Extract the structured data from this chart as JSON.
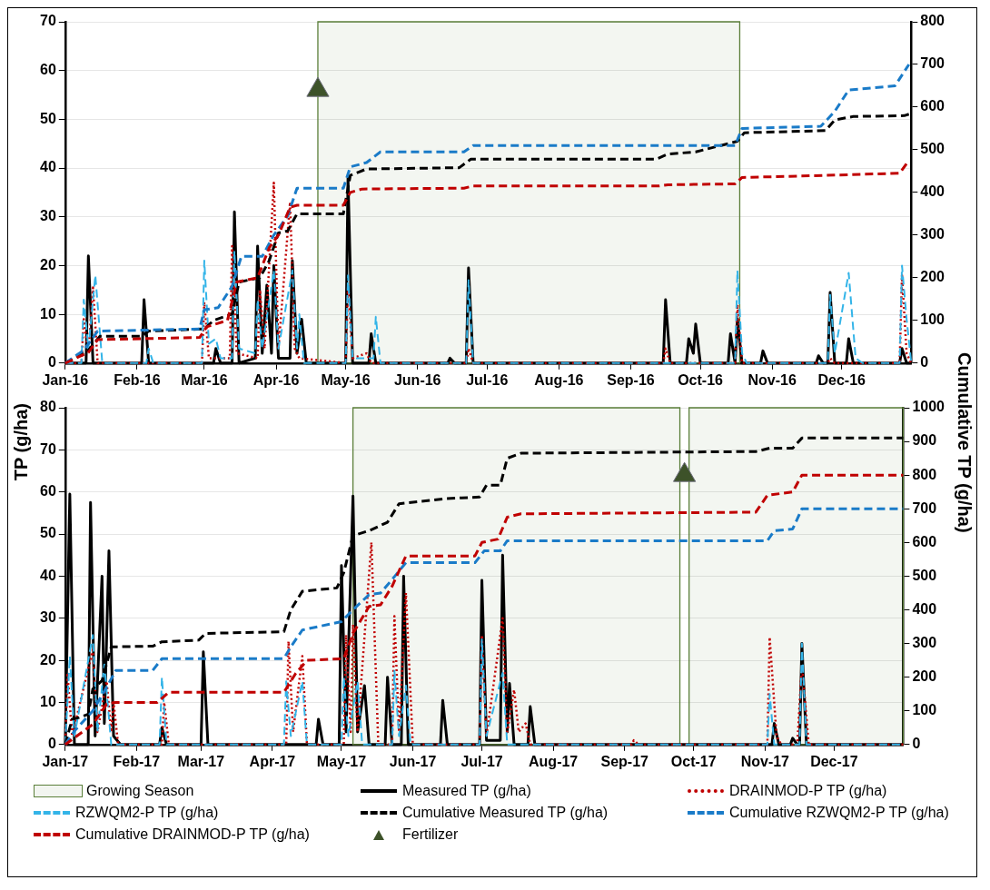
{
  "chart_data": [
    {
      "type": "line",
      "ylabel": "TP (g/ha)",
      "y2label": "Cumulative TP (g/ha)",
      "xlim": [
        "2016-01-01",
        "2016-12-31"
      ],
      "xticks": [
        {
          "value": "2016-01-01",
          "label": "Jan-16"
        },
        {
          "value": "2016-02-01",
          "label": "Feb-16"
        },
        {
          "value": "2016-03-01",
          "label": "Mar-16"
        },
        {
          "value": "2016-04-01",
          "label": "Apr-16"
        },
        {
          "value": "2016-05-01",
          "label": "May-16"
        },
        {
          "value": "2016-06-01",
          "label": "Jun-16"
        },
        {
          "value": "2016-07-01",
          "label": "Jul-16"
        },
        {
          "value": "2016-08-01",
          "label": "Aug-16"
        },
        {
          "value": "2016-09-01",
          "label": "Sep-16"
        },
        {
          "value": "2016-10-01",
          "label": "Oct-16"
        },
        {
          "value": "2016-11-01",
          "label": "Nov-16"
        },
        {
          "value": "2016-12-01",
          "label": "Dec-16"
        }
      ],
      "ylim": [
        0,
        70
      ],
      "yticks": [
        0,
        10,
        20,
        30,
        40,
        50,
        60,
        70
      ],
      "y2lim": [
        0,
        800
      ],
      "y2ticks": [
        0,
        100,
        200,
        300,
        400,
        500,
        600,
        700,
        800
      ],
      "grid": "y",
      "legend": false,
      "bands": [
        {
          "axis": "x",
          "from": "2016-04-19",
          "to": "2016-10-18",
          "color": "#5b7f3a"
        }
      ],
      "series": [
        {
          "color": "#000000",
          "line_style": "solid",
          "x": [
            "2016-01-01",
            "2016-01-10",
            "2016-01-11",
            "2016-01-13",
            "2016-02-03",
            "2016-02-04",
            "2016-02-06",
            "2016-03-05",
            "2016-03-06",
            "2016-03-08",
            "2016-03-13",
            "2016-03-14",
            "2016-03-16",
            "2016-03-23",
            "2016-03-24",
            "2016-03-26",
            "2016-03-28",
            "2016-03-30",
            "2016-03-31",
            "2016-04-02",
            "2016-04-07",
            "2016-04-08",
            "2016-04-10",
            "2016-04-12",
            "2016-04-14",
            "2016-05-01",
            "2016-05-02",
            "2016-05-04",
            "2016-05-11",
            "2016-05-12",
            "2016-05-14",
            "2016-06-14",
            "2016-06-15",
            "2016-06-17",
            "2016-06-22",
            "2016-06-23",
            "2016-06-25",
            "2016-09-15",
            "2016-09-16",
            "2016-09-18",
            "2016-09-25",
            "2016-09-26",
            "2016-09-28",
            "2016-09-29",
            "2016-10-01",
            "2016-10-13",
            "2016-10-14",
            "2016-10-16",
            "2016-10-17",
            "2016-10-19",
            "2016-10-27",
            "2016-10-28",
            "2016-10-30",
            "2016-11-20",
            "2016-11-21",
            "2016-11-23",
            "2016-11-25",
            "2016-11-26",
            "2016-11-28",
            "2016-12-03",
            "2016-12-04",
            "2016-12-06",
            "2016-12-26",
            "2016-12-27",
            "2016-12-29",
            "2016-12-31"
          ],
          "values": [
            0,
            0,
            22,
            0,
            0,
            13,
            0,
            0,
            3,
            0,
            0,
            31,
            0,
            1,
            24,
            2,
            16,
            2,
            20,
            1,
            1,
            21,
            2,
            9,
            0,
            0,
            38,
            0,
            0,
            6,
            0,
            0,
            1,
            0,
            0,
            19.5,
            0,
            0,
            13,
            0,
            0,
            5,
            2,
            8,
            0,
            0,
            6,
            0,
            9,
            0,
            0,
            2.5,
            0,
            0,
            1.5,
            0,
            0,
            14.5,
            0,
            0,
            5,
            0,
            0,
            3,
            0,
            0
          ]
        },
        {
          "color": "#c00000",
          "line_style": "dotted",
          "x": [
            "2016-01-01",
            "2016-01-08",
            "2016-01-09",
            "2016-01-11",
            "2016-01-13",
            "2016-01-15",
            "2016-02-29",
            "2016-03-01",
            "2016-03-03",
            "2016-03-12",
            "2016-03-13",
            "2016-03-15",
            "2016-03-24",
            "2016-03-25",
            "2016-03-27",
            "2016-03-31",
            "2016-04-02",
            "2016-04-07",
            "2016-04-09",
            "2016-04-11",
            "2016-05-01",
            "2016-05-02",
            "2016-05-04",
            "2016-05-10",
            "2016-05-12",
            "2016-06-22",
            "2016-06-23",
            "2016-06-25",
            "2016-09-15",
            "2016-09-16",
            "2016-09-18",
            "2016-10-16",
            "2016-10-17",
            "2016-10-19",
            "2016-11-25",
            "2016-11-26",
            "2016-11-28",
            "2016-12-26",
            "2016-12-27",
            "2016-12-29",
            "2016-12-31"
          ],
          "values": [
            0,
            0,
            9,
            2,
            15.5,
            0,
            0,
            12.5,
            1,
            1,
            24,
            2,
            1,
            15,
            3,
            37,
            3,
            33,
            3,
            1,
            0,
            16,
            1,
            2,
            0,
            0,
            3,
            0,
            0,
            3,
            0,
            0,
            12,
            0,
            0,
            1,
            0,
            0,
            18,
            2,
            0
          ]
        },
        {
          "color": "#33b4e8",
          "line_style": "dashed",
          "x": [
            "2016-01-01",
            "2016-01-08",
            "2016-01-09",
            "2016-01-11",
            "2016-01-14",
            "2016-01-17",
            "2016-02-05",
            "2016-02-06",
            "2016-02-08",
            "2016-02-29",
            "2016-03-01",
            "2016-03-03",
            "2016-03-06",
            "2016-03-08",
            "2016-03-13",
            "2016-03-14",
            "2016-03-16",
            "2016-03-23",
            "2016-03-24",
            "2016-03-26",
            "2016-03-31",
            "2016-04-02",
            "2016-04-08",
            "2016-04-10",
            "2016-04-11",
            "2016-04-13",
            "2016-05-01",
            "2016-05-02",
            "2016-05-04",
            "2016-05-13",
            "2016-05-14",
            "2016-05-16",
            "2016-06-22",
            "2016-06-23",
            "2016-06-25",
            "2016-10-16",
            "2016-10-17",
            "2016-10-19",
            "2016-10-21",
            "2016-11-25",
            "2016-11-26",
            "2016-11-28",
            "2016-12-04",
            "2016-12-07",
            "2016-12-10",
            "2016-12-26",
            "2016-12-27",
            "2016-12-29",
            "2016-12-31"
          ],
          "values": [
            0,
            0,
            13,
            3,
            18,
            0,
            0,
            3,
            0,
            0,
            21,
            4,
            5,
            1,
            1,
            23,
            3,
            2,
            13,
            3,
            19,
            3,
            19,
            3,
            10,
            0,
            0,
            18,
            1,
            1,
            9.5,
            0,
            0,
            17,
            0,
            0,
            19,
            2,
            0,
            0,
            14,
            2,
            18.5,
            1,
            0,
            0,
            20,
            9,
            0
          ]
        },
        {
          "color": "#000000",
          "line_style": "dashed",
          "axis": "y2",
          "x": [
            "2016-01-01",
            "2016-01-11",
            "2016-01-16",
            "2016-02-03",
            "2016-02-06",
            "2016-03-01",
            "2016-03-05",
            "2016-03-13",
            "2016-03-16",
            "2016-03-25",
            "2016-03-29",
            "2016-04-02",
            "2016-04-06",
            "2016-04-10",
            "2016-04-30",
            "2016-05-03",
            "2016-05-10",
            "2016-06-19",
            "2016-06-24",
            "2016-09-12",
            "2016-09-17",
            "2016-09-29",
            "2016-10-17",
            "2016-10-20",
            "2016-11-24",
            "2016-11-28",
            "2016-12-06",
            "2016-12-28",
            "2016-12-31"
          ],
          "values": [
            0,
            30,
            63,
            63,
            75,
            80,
            100,
            115,
            190,
            200,
            240,
            305,
            310,
            350,
            350,
            440,
            455,
            458,
            478,
            478,
            490,
            495,
            520,
            540,
            545,
            570,
            578,
            580,
            585
          ]
        },
        {
          "color": "#1a7bc8",
          "line_style": "dashed",
          "axis": "y2",
          "x": [
            "2016-01-01",
            "2016-01-09",
            "2016-01-15",
            "2016-02-28",
            "2016-03-01",
            "2016-03-07",
            "2016-03-13",
            "2016-03-17",
            "2016-03-26",
            "2016-03-31",
            "2016-04-06",
            "2016-04-10",
            "2016-04-30",
            "2016-05-03",
            "2016-05-10",
            "2016-05-16",
            "2016-06-21",
            "2016-06-25",
            "2016-10-16",
            "2016-10-19",
            "2016-11-22",
            "2016-11-28",
            "2016-12-04",
            "2016-12-24",
            "2016-12-30"
          ],
          "values": [
            0,
            30,
            75,
            80,
            125,
            130,
            180,
            250,
            250,
            300,
            345,
            410,
            410,
            460,
            470,
            495,
            495,
            510,
            510,
            550,
            555,
            590,
            640,
            650,
            700
          ]
        },
        {
          "color": "#c00000",
          "line_style": "dashed",
          "axis": "y2",
          "x": [
            "2016-01-01",
            "2016-01-11",
            "2016-01-15",
            "2016-02-28",
            "2016-03-02",
            "2016-03-11",
            "2016-03-15",
            "2016-03-24",
            "2016-03-29",
            "2016-04-02",
            "2016-04-07",
            "2016-04-10",
            "2016-04-30",
            "2016-05-03",
            "2016-05-08",
            "2016-06-21",
            "2016-06-25",
            "2016-09-13",
            "2016-09-17",
            "2016-10-16",
            "2016-10-19",
            "2016-11-24",
            "2016-12-26",
            "2016-12-30"
          ],
          "values": [
            0,
            25,
            55,
            60,
            85,
            100,
            190,
            200,
            270,
            300,
            365,
            370,
            370,
            400,
            408,
            410,
            415,
            415,
            418,
            420,
            435,
            440,
            445,
            475
          ]
        },
        {
          "type": "scatter",
          "marker": "triangle",
          "color": "#3d5229",
          "x": [
            "2016-04-19"
          ],
          "values": [
            56
          ]
        }
      ]
    },
    {
      "type": "line",
      "xlim": [
        "2017-01-01",
        "2017-12-31"
      ],
      "xticks": [
        {
          "value": "2017-01-01",
          "label": "Jan-17"
        },
        {
          "value": "2017-02-01",
          "label": "Feb-17"
        },
        {
          "value": "2017-03-01",
          "label": "Mar-17"
        },
        {
          "value": "2017-04-01",
          "label": "Apr-17"
        },
        {
          "value": "2017-05-01",
          "label": "May-17"
        },
        {
          "value": "2017-06-01",
          "label": "Jun-17"
        },
        {
          "value": "2017-07-01",
          "label": "Jul-17"
        },
        {
          "value": "2017-08-01",
          "label": "Aug-17"
        },
        {
          "value": "2017-09-01",
          "label": "Sep-17"
        },
        {
          "value": "2017-10-01",
          "label": "Oct-17"
        },
        {
          "value": "2017-11-01",
          "label": "Nov-17"
        },
        {
          "value": "2017-12-01",
          "label": "Dec-17"
        }
      ],
      "ylim": [
        0,
        80
      ],
      "yticks": [
        0,
        10,
        20,
        30,
        40,
        50,
        60,
        70,
        80
      ],
      "y2lim": [
        0,
        1000
      ],
      "y2ticks": [
        0,
        100,
        200,
        300,
        400,
        500,
        600,
        700,
        800,
        900,
        1000
      ],
      "grid": "y",
      "legend": "bottom",
      "bands": [
        {
          "axis": "x",
          "from": "2017-05-06",
          "to": "2017-09-25",
          "color": "#5b7f3a",
          "label": "Growing Season"
        },
        {
          "axis": "x",
          "from": "2017-09-29",
          "to": "2017-12-31",
          "color": "#5b7f3a"
        }
      ],
      "series": [
        {
          "name": "Measured TP (g/ha)",
          "color": "#000000",
          "line_style": "solid",
          "x": [
            "2017-01-01",
            "2017-01-03",
            "2017-01-05",
            "2017-01-11",
            "2017-01-12",
            "2017-01-14",
            "2017-01-17",
            "2017-01-18",
            "2017-01-20",
            "2017-01-22",
            "2017-01-25",
            "2017-02-11",
            "2017-02-12",
            "2017-02-14",
            "2017-03-01",
            "2017-03-02",
            "2017-03-04",
            "2017-04-20",
            "2017-04-21",
            "2017-04-23",
            "2017-04-30",
            "2017-05-01",
            "2017-05-03",
            "2017-05-06",
            "2017-05-08",
            "2017-05-11",
            "2017-05-13",
            "2017-05-20",
            "2017-05-21",
            "2017-05-23",
            "2017-05-27",
            "2017-05-28",
            "2017-05-30",
            "2017-06-13",
            "2017-06-14",
            "2017-06-16",
            "2017-06-30",
            "2017-07-01",
            "2017-07-03",
            "2017-07-09",
            "2017-07-10",
            "2017-07-12",
            "2017-07-13",
            "2017-07-15",
            "2017-07-21",
            "2017-07-22",
            "2017-07-24",
            "2017-11-04",
            "2017-11-05",
            "2017-11-07",
            "2017-11-12",
            "2017-11-13",
            "2017-11-15",
            "2017-11-16",
            "2017-11-17",
            "2017-11-19",
            "2017-12-31"
          ],
          "values": [
            0,
            59.5,
            0,
            0,
            57.5,
            2,
            40,
            5,
            46,
            2,
            0,
            0,
            4,
            0,
            0,
            22,
            0,
            0,
            6,
            0,
            0,
            42.5,
            3,
            59,
            3,
            14,
            0,
            0,
            16,
            0,
            0,
            40,
            0,
            0,
            10.5,
            0,
            0,
            39,
            1,
            1,
            45,
            3,
            14.5,
            0,
            0,
            9,
            0,
            0,
            5,
            0,
            0,
            1.5,
            0,
            0,
            24,
            0,
            0
          ]
        },
        {
          "name": "DRAINMOD-P TP (g/ha)",
          "color": "#c00000",
          "line_style": "dotted",
          "x": [
            "2017-01-01",
            "2017-01-02",
            "2017-01-04",
            "2017-01-13",
            "2017-01-15",
            "2017-01-19",
            "2017-01-21",
            "2017-01-22",
            "2017-01-24",
            "2017-02-12",
            "2017-02-13",
            "2017-02-15",
            "2017-04-07",
            "2017-04-08",
            "2017-04-10",
            "2017-04-14",
            "2017-04-16",
            "2017-05-02",
            "2017-05-03",
            "2017-05-05",
            "2017-05-06",
            "2017-05-08",
            "2017-05-14",
            "2017-05-17",
            "2017-05-23",
            "2017-05-24",
            "2017-05-26",
            "2017-05-29",
            "2017-06-01",
            "2017-06-30",
            "2017-07-01",
            "2017-07-03",
            "2017-07-10",
            "2017-07-12",
            "2017-07-15",
            "2017-07-17",
            "2017-07-20",
            "2017-07-22",
            "2017-09-04",
            "2017-09-05",
            "2017-09-07",
            "2017-11-02",
            "2017-11-03",
            "2017-11-06",
            "2017-11-08",
            "2017-11-15",
            "2017-11-17",
            "2017-11-20",
            "2017-12-31"
          ],
          "values": [
            0,
            17,
            2,
            22.5,
            3,
            15,
            3,
            10,
            0,
            0,
            10,
            0,
            0,
            24.5,
            3,
            21,
            0,
            0,
            26,
            3,
            28.5,
            3,
            48,
            0,
            0,
            30.5,
            3,
            36,
            0,
            0,
            26,
            2,
            30,
            3,
            13,
            3,
            5,
            0,
            0,
            1,
            0,
            0,
            25.5,
            2,
            0,
            0,
            19,
            0,
            0
          ]
        },
        {
          "name": "RZWQM2-P TP (g/ha)",
          "color": "#33b4e8",
          "line_style": "dashed",
          "x": [
            "2017-01-01",
            "2017-01-03",
            "2017-01-05",
            "2017-01-13",
            "2017-01-15",
            "2017-01-18",
            "2017-01-21",
            "2017-02-11",
            "2017-02-12",
            "2017-02-14",
            "2017-04-06",
            "2017-04-07",
            "2017-04-09",
            "2017-04-14",
            "2017-04-16",
            "2017-05-01",
            "2017-05-02",
            "2017-05-04",
            "2017-05-08",
            "2017-05-10",
            "2017-05-23",
            "2017-05-24",
            "2017-05-26",
            "2017-05-29",
            "2017-05-31",
            "2017-06-30",
            "2017-07-01",
            "2017-07-03",
            "2017-07-10",
            "2017-07-12",
            "2017-11-02",
            "2017-11-03",
            "2017-11-05",
            "2017-11-16",
            "2017-11-17",
            "2017-11-19",
            "2017-12-31"
          ],
          "values": [
            0,
            21,
            2,
            26,
            3,
            19,
            0,
            0,
            16,
            0,
            0,
            15,
            2,
            15,
            0,
            0,
            16,
            2,
            15,
            0,
            0,
            17.5,
            2,
            14,
            0,
            0,
            25,
            2,
            17,
            0,
            0,
            12,
            0,
            0,
            24,
            0,
            0
          ]
        },
        {
          "name": "Cumulative Measured TP (g/ha)",
          "color": "#000000",
          "line_style": "dashed",
          "axis": "y2",
          "x": [
            "2017-01-01",
            "2017-01-04",
            "2017-01-07",
            "2017-01-11",
            "2017-01-13",
            "2017-01-17",
            "2017-01-21",
            "2017-02-08",
            "2017-02-12",
            "2017-02-28",
            "2017-03-03",
            "2017-04-06",
            "2017-04-09",
            "2017-04-14",
            "2017-04-29",
            "2017-05-02",
            "2017-05-06",
            "2017-05-13",
            "2017-05-21",
            "2017-05-26",
            "2017-06-15",
            "2017-06-30",
            "2017-07-03",
            "2017-07-09",
            "2017-07-12",
            "2017-07-18",
            "2017-10-28",
            "2017-11-03",
            "2017-11-13",
            "2017-11-17",
            "2017-12-31"
          ],
          "values": [
            0,
            75,
            80,
            90,
            165,
            190,
            290,
            292,
            305,
            310,
            330,
            335,
            400,
            455,
            465,
            510,
            620,
            635,
            660,
            715,
            730,
            735,
            770,
            770,
            850,
            865,
            870,
            880,
            880,
            910,
            910
          ]
        },
        {
          "name": "Cumulative RZWQM2-P TP (g/ha)",
          "color": "#1a7bc8",
          "line_style": "dashed",
          "axis": "y2",
          "x": [
            "2017-01-01",
            "2017-01-05",
            "2017-01-13",
            "2017-01-19",
            "2017-01-23",
            "2017-02-08",
            "2017-02-12",
            "2017-04-06",
            "2017-04-09",
            "2017-04-14",
            "2017-05-01",
            "2017-05-06",
            "2017-05-13",
            "2017-05-18",
            "2017-05-23",
            "2017-05-29",
            "2017-06-28",
            "2017-07-02",
            "2017-07-09",
            "2017-07-12",
            "2017-11-02",
            "2017-11-05",
            "2017-11-13",
            "2017-11-17",
            "2017-12-31"
          ],
          "values": [
            0,
            40,
            100,
            170,
            220,
            220,
            255,
            255,
            290,
            340,
            365,
            400,
            445,
            450,
            490,
            540,
            540,
            575,
            575,
            605,
            605,
            635,
            640,
            700,
            700
          ]
        },
        {
          "name": "Cumulative DRAINMOD-P TP (g/ha)",
          "color": "#c00000",
          "line_style": "dashed",
          "axis": "y2",
          "x": [
            "2017-01-01",
            "2017-01-06",
            "2017-01-13",
            "2017-01-19",
            "2017-01-23",
            "2017-02-10",
            "2017-02-15",
            "2017-04-06",
            "2017-04-11",
            "2017-04-16",
            "2017-05-02",
            "2017-05-06",
            "2017-05-13",
            "2017-05-18",
            "2017-05-23",
            "2017-05-29",
            "2017-06-28",
            "2017-07-01",
            "2017-07-08",
            "2017-07-12",
            "2017-07-18",
            "2017-10-28",
            "2017-11-02",
            "2017-11-13",
            "2017-11-17",
            "2017-12-31"
          ],
          "values": [
            0,
            25,
            60,
            120,
            125,
            125,
            155,
            155,
            210,
            250,
            255,
            330,
            410,
            415,
            470,
            560,
            560,
            600,
            610,
            675,
            685,
            690,
            740,
            750,
            800,
            800
          ]
        },
        {
          "name": "Fertilizer",
          "type": "scatter",
          "marker": "triangle",
          "color": "#3d5229",
          "x": [
            "2017-09-27"
          ],
          "values": [
            64
          ]
        }
      ]
    }
  ]
}
